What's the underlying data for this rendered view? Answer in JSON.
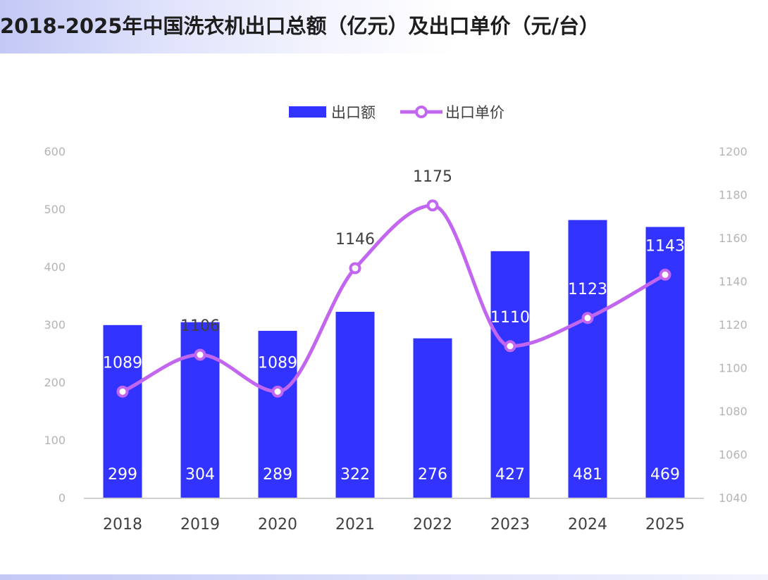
{
  "title": "2018-2025年中国洗衣机出口总额（亿元）及出口单价（元/台）",
  "chart_data": {
    "type": "bar",
    "categories": [
      "2018",
      "2019",
      "2020",
      "2021",
      "2022",
      "2023",
      "2024",
      "2025"
    ],
    "series": [
      {
        "name": "出口额",
        "type": "bar",
        "axis": "left",
        "color": "#3333ff",
        "values": [
          299,
          304,
          289,
          322,
          276,
          427,
          481,
          469
        ]
      },
      {
        "name": "出口单价",
        "type": "line",
        "axis": "right",
        "color": "#c266f0",
        "smooth": true,
        "values": [
          1089,
          1106,
          1089,
          1146,
          1175,
          1110,
          1123,
          1143
        ]
      }
    ],
    "y_left": {
      "min": 0,
      "max": 600,
      "ticks": [
        0,
        100,
        200,
        300,
        400,
        500,
        600
      ]
    },
    "y_right": {
      "min": 1040,
      "max": 1200,
      "ticks": [
        1040,
        1060,
        1080,
        1100,
        1120,
        1140,
        1160,
        1180,
        1200
      ]
    },
    "legend_position": "top-center",
    "grid": false
  }
}
